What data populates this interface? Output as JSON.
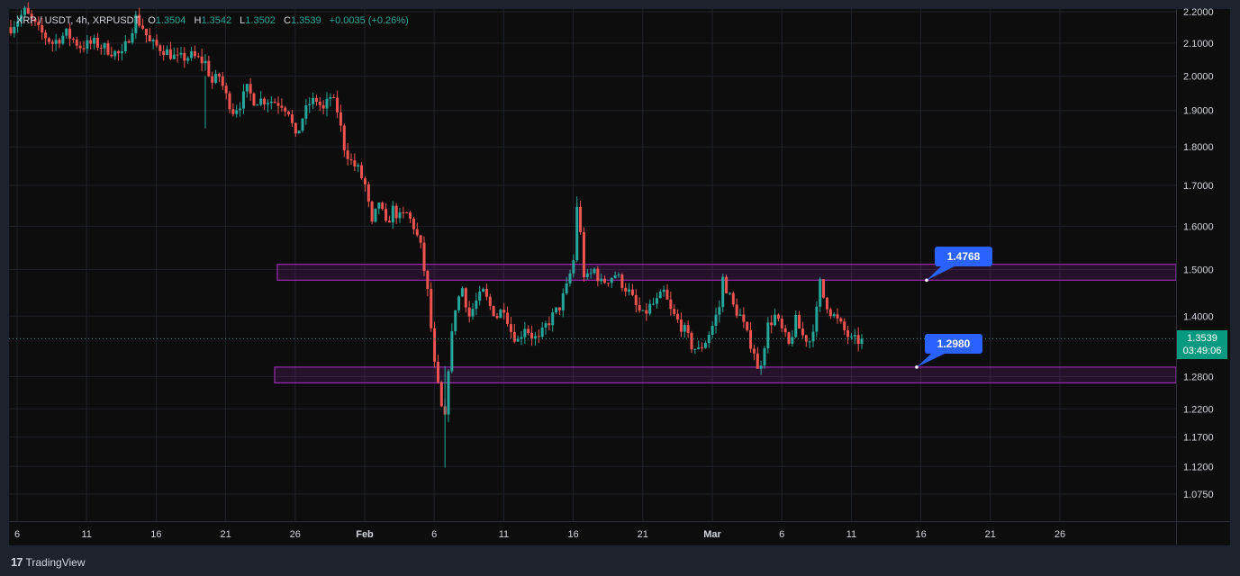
{
  "legend": {
    "symbol": "XRP / USDT, 4h, XRPUSDT",
    "open_label": "O",
    "open": "1.3504",
    "high_label": "H",
    "high": "1.3542",
    "low_label": "L",
    "low": "1.3502",
    "close_label": "C",
    "close": "1.3539",
    "change": "+0.0035 (+0.26%)"
  },
  "price_badge": {
    "price": "1.3539",
    "countdown": "03:49:06"
  },
  "annotations": [
    {
      "label": "1.4768",
      "price": 1.4768
    },
    {
      "label": "1.2980",
      "price": 1.298
    }
  ],
  "footer": {
    "brand": "TradingView",
    "logo": "tv-logo-icon"
  },
  "colors": {
    "up": "#26a69a",
    "down": "#ef5350",
    "zone": "#9c27b0",
    "callout": "#2962ff",
    "background": "#0d0d0d"
  },
  "chart_data": {
    "type": "candlestick",
    "symbol": "XRP / USDT",
    "interval": "4h",
    "y_scale": "log",
    "grid": true,
    "y_ticks": [
      "2.2000",
      "2.1000",
      "2.0000",
      "1.9000",
      "1.8000",
      "1.7000",
      "1.6000",
      "1.5000",
      "1.4000",
      "1.2800",
      "1.2200",
      "1.1700",
      "1.1200",
      "1.0750"
    ],
    "y_tick_values": [
      2.2,
      2.1,
      2.0,
      1.9,
      1.8,
      1.7,
      1.6,
      1.5,
      1.4,
      1.28,
      1.22,
      1.17,
      1.12,
      1.075
    ],
    "x_ticks": [
      "6",
      "11",
      "16",
      "21",
      "26",
      "Feb",
      "6",
      "11",
      "16",
      "21",
      "Mar",
      "6",
      "11",
      "16",
      "21",
      "26"
    ],
    "x_tick_bold": [
      false,
      false,
      false,
      false,
      false,
      true,
      false,
      false,
      false,
      false,
      true,
      false,
      false,
      false,
      false,
      false
    ],
    "zones": [
      {
        "name": "resistance-zone",
        "low": 1.4768,
        "high": 1.512
      },
      {
        "name": "support-zone",
        "low": 1.268,
        "high": 1.298
      }
    ],
    "last_price": 1.3539,
    "path": [
      [
        0,
        2.15
      ],
      [
        4,
        2.2
      ],
      [
        8,
        2.14
      ],
      [
        12,
        2.1
      ],
      [
        16,
        2.13
      ],
      [
        20,
        2.09
      ],
      [
        24,
        2.1
      ],
      [
        28,
        2.08
      ],
      [
        32,
        2.06
      ],
      [
        34,
        2.12
      ],
      [
        36,
        2.18
      ],
      [
        38,
        2.15
      ],
      [
        40,
        2.1
      ],
      [
        44,
        2.08
      ],
      [
        48,
        2.05
      ],
      [
        52,
        2.06
      ],
      [
        56,
        2.04
      ],
      [
        58,
        1.98
      ],
      [
        60,
        2.0
      ],
      [
        62,
        1.94
      ],
      [
        64,
        1.9
      ],
      [
        66,
        1.92
      ],
      [
        68,
        1.96
      ],
      [
        70,
        1.93
      ],
      [
        74,
        1.93
      ],
      [
        78,
        1.92
      ],
      [
        80,
        1.9
      ],
      [
        82,
        1.82
      ],
      [
        84,
        1.88
      ],
      [
        86,
        1.92
      ],
      [
        88,
        1.93
      ],
      [
        90,
        1.9
      ],
      [
        92,
        1.94
      ],
      [
        94,
        1.9
      ],
      [
        96,
        1.8
      ],
      [
        98,
        1.76
      ],
      [
        100,
        1.74
      ],
      [
        102,
        1.7
      ],
      [
        104,
        1.6
      ],
      [
        106,
        1.66
      ],
      [
        108,
        1.6
      ],
      [
        110,
        1.64
      ],
      [
        112,
        1.62
      ],
      [
        114,
        1.63
      ],
      [
        116,
        1.6
      ],
      [
        118,
        1.55
      ],
      [
        120,
        1.45
      ],
      [
        122,
        1.3
      ],
      [
        124,
        1.22
      ],
      [
        125,
        1.2
      ],
      [
        126,
        1.3
      ],
      [
        128,
        1.42
      ],
      [
        130,
        1.46
      ],
      [
        132,
        1.4
      ],
      [
        134,
        1.43
      ],
      [
        136,
        1.45
      ],
      [
        138,
        1.42
      ],
      [
        140,
        1.4
      ],
      [
        142,
        1.42
      ],
      [
        144,
        1.37
      ],
      [
        146,
        1.35
      ],
      [
        148,
        1.38
      ],
      [
        150,
        1.36
      ],
      [
        152,
        1.35
      ],
      [
        154,
        1.38
      ],
      [
        156,
        1.4
      ],
      [
        158,
        1.42
      ],
      [
        160,
        1.46
      ],
      [
        162,
        1.52
      ],
      [
        163,
        1.65
      ],
      [
        164,
        1.58
      ],
      [
        165,
        1.49
      ],
      [
        166,
        1.48
      ],
      [
        168,
        1.5
      ],
      [
        170,
        1.47
      ],
      [
        172,
        1.48
      ],
      [
        174,
        1.49
      ],
      [
        176,
        1.47
      ],
      [
        178,
        1.45
      ],
      [
        180,
        1.42
      ],
      [
        182,
        1.4
      ],
      [
        184,
        1.42
      ],
      [
        186,
        1.43
      ],
      [
        188,
        1.45
      ],
      [
        190,
        1.41
      ],
      [
        192,
        1.39
      ],
      [
        194,
        1.37
      ],
      [
        196,
        1.34
      ],
      [
        198,
        1.33
      ],
      [
        200,
        1.35
      ],
      [
        202,
        1.38
      ],
      [
        204,
        1.42
      ],
      [
        205,
        1.48
      ],
      [
        206,
        1.46
      ],
      [
        208,
        1.42
      ],
      [
        210,
        1.4
      ],
      [
        212,
        1.36
      ],
      [
        214,
        1.33
      ],
      [
        215,
        1.29
      ],
      [
        216,
        1.31
      ],
      [
        218,
        1.38
      ],
      [
        220,
        1.4
      ],
      [
        222,
        1.37
      ],
      [
        224,
        1.34
      ],
      [
        226,
        1.39
      ],
      [
        228,
        1.36
      ],
      [
        230,
        1.35
      ],
      [
        232,
        1.41
      ],
      [
        233,
        1.47
      ],
      [
        234,
        1.44
      ],
      [
        236,
        1.41
      ],
      [
        238,
        1.39
      ],
      [
        240,
        1.37
      ],
      [
        242,
        1.35
      ],
      [
        244,
        1.35
      ],
      [
        245,
        1.354
      ]
    ]
  }
}
